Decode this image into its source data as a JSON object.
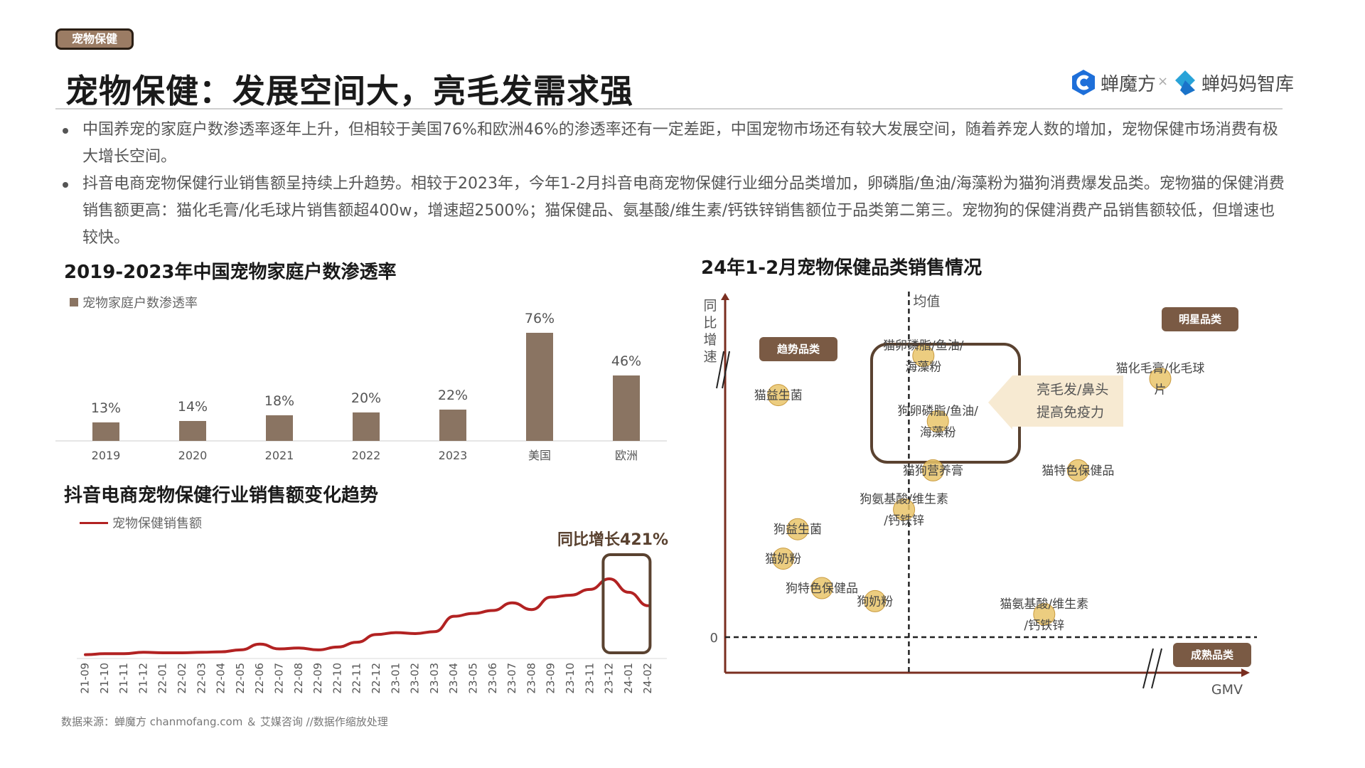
{
  "tag": "宠物保健",
  "title": "宠物保健：发展空间大，亮毛发需求强",
  "logos": {
    "chanmofang": "蝉魔方",
    "separator": "×",
    "chanmama": "蝉妈妈智库"
  },
  "bullets": [
    "中国养宠的家庭户数渗透率逐年上升，但相较于美国76%和欧洲46%的渗透率还有一定差距，中国宠物市场还有较大发展空间，随着养宠人数的增加，宠物保健市场消费有极大增长空间。",
    "抖音电商宠物保健行业销售额呈持续上升趋势。相较于2023年，今年1-2月抖音电商宠物保健行业细分品类增加，卵磷脂/鱼油/海藻粉为猫狗消费爆发品类。宠物猫的保健消费销售额更高：猫化毛膏/化毛球片销售额超400w，增速超2500%；猫保健品、氨基酸/维生素/钙铁锌销售额位于品类第二第三。宠物狗的保健消费产品销售额较低，但增速也较快。"
  ],
  "colors": {
    "bar": "#8a7462",
    "line": "#b22222",
    "pill": "#7a5a44",
    "bubble": "#e9c46a",
    "box": "#5a4230"
  },
  "source": "数据来源：蝉魔方 chanmofang.com ＆ 艾媒咨询 //数据作缩放处理",
  "chart_data": [
    {
      "type": "bar",
      "title": "2019-2023年中国宠物家庭户数渗透率",
      "legend": "宠物家庭户数渗透率",
      "categories": [
        "2019",
        "2020",
        "2021",
        "2022",
        "2023",
        "美国",
        "欧洲"
      ],
      "values": [
        13,
        14,
        18,
        20,
        22,
        76,
        46
      ],
      "labels": [
        "13%",
        "14%",
        "18%",
        "20%",
        "22%",
        "76%",
        "46%"
      ],
      "ylim": [
        0,
        80
      ]
    },
    {
      "type": "line",
      "title": "抖音电商宠物保健行业销售额变化趋势",
      "series_name": "宠物保健销售额",
      "annotation": "同比增长421%",
      "x": [
        "21-09",
        "21-10",
        "21-11",
        "21-12",
        "22-01",
        "22-02",
        "22-03",
        "22-04",
        "22-05",
        "22-06",
        "22-07",
        "22-08",
        "22-09",
        "22-10",
        "22-11",
        "22-12",
        "23-01",
        "23-02",
        "23-03",
        "23-04",
        "23-05",
        "23-06",
        "23-07",
        "23-08",
        "23-09",
        "23-10",
        "23-11",
        "23-12",
        "24-01",
        "24-02"
      ],
      "values": [
        1,
        2,
        2,
        3.5,
        3,
        3,
        3.5,
        4,
        6,
        12,
        7,
        8,
        6,
        9,
        14,
        22,
        24,
        23,
        25,
        41,
        44,
        47,
        55,
        48,
        61,
        63,
        69,
        80,
        66,
        52
      ]
    },
    {
      "type": "scatter",
      "title": "24年1-2月宠物保健品类销售情况",
      "xlabel": "GMV",
      "ylabel": "同比增速",
      "mean_label": "均值",
      "zero_label": "0",
      "quadrants": [
        "趋势品类",
        "明星品类",
        "成熟品类"
      ],
      "callout": [
        "亮毛发/鼻头",
        "提高免疫力"
      ],
      "points": [
        {
          "label": [
            "猫卵磷脂/鱼油/",
            "海藻粉"
          ],
          "x": 0.41,
          "y": 0.86
        },
        {
          "label": [
            "狗卵磷脂/鱼油/",
            "海藻粉"
          ],
          "x": 0.44,
          "y": 0.66
        },
        {
          "label": [
            "猫化毛膏/化毛球",
            "片"
          ],
          "x": 0.9,
          "y": 0.79
        },
        {
          "label": [
            "猫益生菌"
          ],
          "x": 0.11,
          "y": 0.74
        },
        {
          "label": [
            "猫狗营养膏"
          ],
          "x": 0.43,
          "y": 0.51
        },
        {
          "label": [
            "猫特色保健品"
          ],
          "x": 0.73,
          "y": 0.51
        },
        {
          "label": [
            "狗氨基酸/维生素",
            "/钙铁锌"
          ],
          "x": 0.37,
          "y": 0.39
        },
        {
          "label": [
            "狗益生菌"
          ],
          "x": 0.15,
          "y": 0.33
        },
        {
          "label": [
            "猫奶粉"
          ],
          "x": 0.12,
          "y": 0.24
        },
        {
          "label": [
            "狗特色保健品"
          ],
          "x": 0.2,
          "y": 0.15
        },
        {
          "label": [
            "狗奶粉"
          ],
          "x": 0.31,
          "y": 0.11
        },
        {
          "label": [
            "猫氨基酸/维生素",
            "/钙铁锌"
          ],
          "x": 0.66,
          "y": 0.07
        }
      ]
    }
  ]
}
